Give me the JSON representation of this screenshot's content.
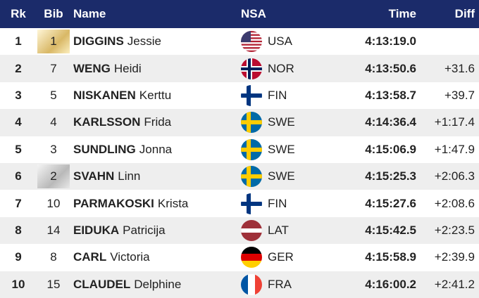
{
  "header": {
    "rank": "Rk",
    "bib": "Bib",
    "name": "Name",
    "nsa": "NSA",
    "time": "Time",
    "diff": "Diff"
  },
  "table": {
    "rows": [
      {
        "rank": 1,
        "bib": 1,
        "surname": "DIGGINS",
        "given_name": "Jessie",
        "nsa": "USA",
        "time": "4:13:19.0"
      },
      {
        "rank": 2,
        "bib": 7,
        "surname": "WENG",
        "given_name": "Heidi",
        "nsa": "NOR",
        "time": "4:13:50.6",
        "diff": "+31.6"
      },
      {
        "rank": 3,
        "bib": 5,
        "surname": "NISKANEN",
        "given_name": "Kerttu",
        "nsa": "FIN",
        "time": "4:13:58.7",
        "diff": "+39.7"
      },
      {
        "rank": 4,
        "bib": 4,
        "surname": "KARLSSON",
        "given_name": "Frida",
        "nsa": "SWE",
        "time": "4:14:36.4",
        "diff": "+1:17.4"
      },
      {
        "rank": 5,
        "bib": 3,
        "surname": "SUNDLING",
        "given_name": "Jonna",
        "nsa": "SWE",
        "time": "4:15:06.9",
        "diff": "+1:47.9"
      },
      {
        "rank": 6,
        "bib": 2,
        "surname": "SVAHN",
        "given_name": "Linn",
        "nsa": "SWE",
        "time": "4:15:25.3",
        "diff": "+2:06.3"
      },
      {
        "rank": 7,
        "bib": 10,
        "surname": "PARMAKOSKI",
        "given_name": "Krista",
        "nsa": "FIN",
        "time": "4:15:27.6",
        "diff": "+2:08.6"
      },
      {
        "rank": 8,
        "bib": 14,
        "surname": "EIDUKA",
        "given_name": "Patricija",
        "nsa": "LAT",
        "time": "4:15:42.5",
        "diff": "+2:23.5"
      },
      {
        "rank": 9,
        "bib": 8,
        "surname": "CARL",
        "given_name": "Victoria",
        "nsa": "GER",
        "time": "4:15:58.9",
        "diff": "+2:39.9"
      },
      {
        "rank": 10,
        "bib": 15,
        "surname": "CLAUDEL",
        "given_name": "Delphine",
        "nsa": "FRA",
        "time": "4:16:00.2",
        "diff": "+2:41.2"
      }
    ]
  }
}
